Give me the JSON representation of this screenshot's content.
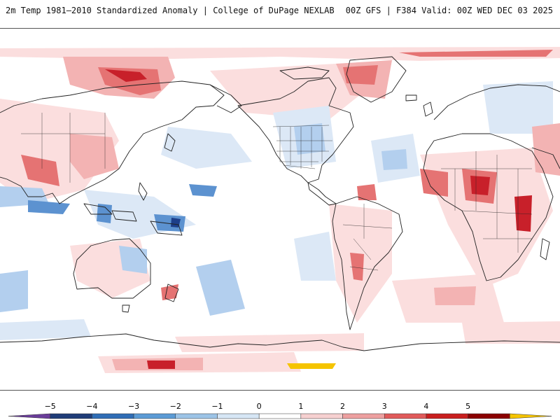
{
  "header": {
    "title": "2m Temp 1981–2010 Standardized Anomaly | College of DuPage NEXLAB",
    "run_info": "00Z GFS | F384 Valid: 00Z WED DEC 03 2025"
  },
  "legend": {
    "ticks": [
      "−5",
      "−4",
      "−3",
      "−2",
      "−1",
      "0",
      "1",
      "2",
      "3",
      "4",
      "5"
    ],
    "colors": [
      "#6a3d9a",
      "#1f3c78",
      "#2f6db5",
      "#5b9bd5",
      "#9cc3e6",
      "#d6e6f5",
      "#ffffff",
      "#f6d0d0",
      "#eda0a0",
      "#e05a5a",
      "#c81e1e",
      "#8b0000",
      "#f5c400"
    ]
  },
  "map": {
    "colors": {
      "ocean": "#ffffff",
      "land_line": "#222222",
      "warm1": "#fbdede",
      "warm2": "#f3b3b3",
      "warm3": "#e57373",
      "warm4": "#c8202a",
      "cool1": "#dce8f6",
      "cool2": "#b3cfee",
      "cool3": "#5c92d0",
      "cool4": "#1d3f8a"
    }
  }
}
